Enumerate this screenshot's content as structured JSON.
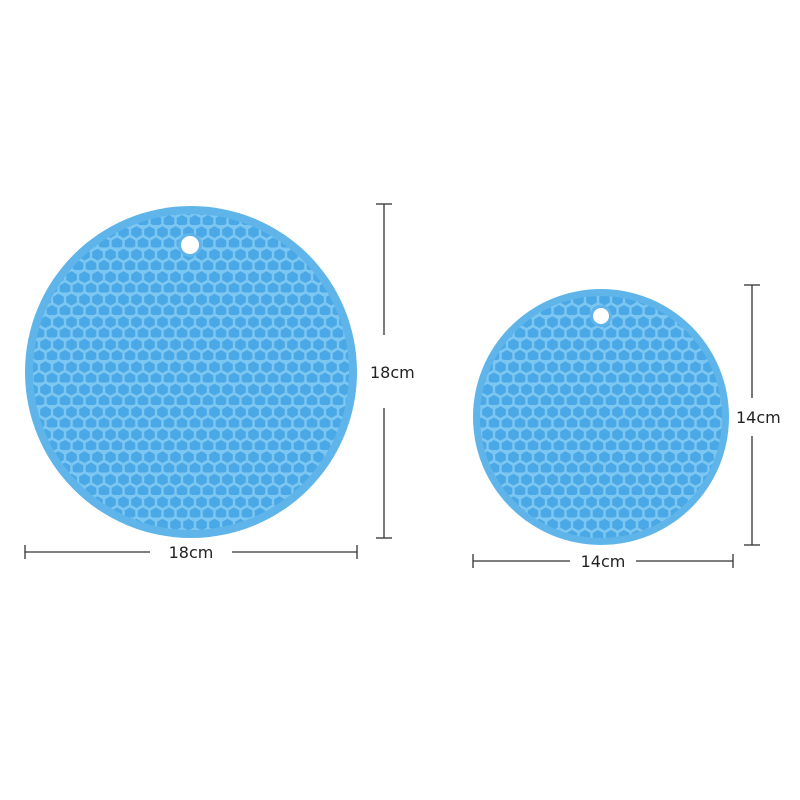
{
  "products": [
    {
      "name": "large-trivet",
      "width_label": "18cm",
      "height_label": "18cm"
    },
    {
      "name": "small-trivet",
      "width_label": "14cm",
      "height_label": "14cm"
    }
  ],
  "colors": {
    "mat": "#4aa8e6",
    "honeycomb": "#7cc6f2",
    "background": "#ffffff",
    "dimension_line": "#333333"
  }
}
